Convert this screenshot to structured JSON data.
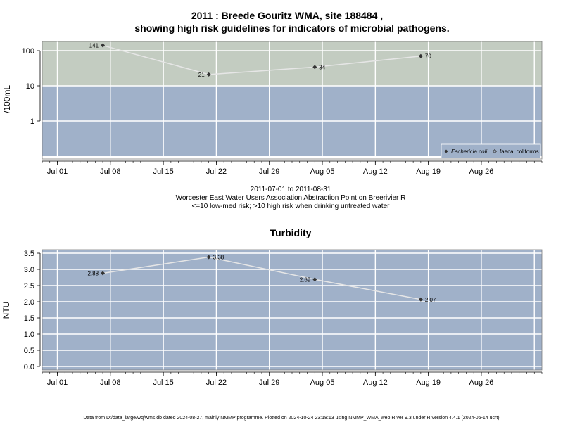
{
  "chart_data": [
    {
      "type": "line",
      "title_line1": "2011 : Breede Gouritz WMA, site 188484 ,",
      "title_line2": "showing high risk guidelines for indicators of microbial pathogens.",
      "ylabel": "/100mL",
      "yscale": "log",
      "yticks": [
        "1",
        "10",
        "100"
      ],
      "ytick_values": [
        1,
        10,
        100
      ],
      "xticks": [
        "Jul 01",
        "Jul 08",
        "Jul 15",
        "Jul 22",
        "Jul 29",
        "Aug 05",
        "Aug 12",
        "Aug 19",
        "Aug 26"
      ],
      "xtick_dates": [
        "2011-07-01",
        "2011-07-08",
        "2011-07-15",
        "2011-07-22",
        "2011-07-29",
        "2011-08-05",
        "2011-08-12",
        "2011-08-19",
        "2011-08-26"
      ],
      "xlim": [
        "2011-06-29",
        "2011-09-03"
      ],
      "grid": true,
      "background_bands": [
        {
          "label": "low-med risk",
          "range": [
            0.1,
            10
          ],
          "color": "#a0b1c9"
        },
        {
          "label": "high risk",
          "range": [
            10,
            200
          ],
          "color": "#c3ccc1"
        }
      ],
      "series": [
        {
          "name": "Eschericia coli",
          "marker": "filled-diamond",
          "x": [
            "2011-07-07",
            "2011-07-21",
            "2011-08-04",
            "2011-08-18"
          ],
          "values": [
            141,
            21,
            34,
            70
          ],
          "labels": [
            "141",
            "21",
            "34",
            "70"
          ]
        }
      ],
      "legend": {
        "placement": "bottom-right",
        "entries": [
          {
            "label": "Eschericia coli",
            "marker": "filled-diamond"
          },
          {
            "label": "faecal coliforms",
            "marker": "open-diamond"
          }
        ]
      },
      "caption_line1": "2011-07-01 to 2011-08-31",
      "caption_line2": "Worcester East Water Users Association Abstraction Point on Breerivier R",
      "caption_line3": "<=10 low-med risk; >10 high risk when drinking untreated water"
    },
    {
      "type": "line",
      "title": "Turbidity",
      "ylabel": "NTU",
      "ylim": [
        -0.1,
        3.5
      ],
      "yticks": [
        "0.0",
        "0.5",
        "1.0",
        "1.5",
        "2.0",
        "2.5",
        "3.0",
        "3.5"
      ],
      "ytick_values": [
        0,
        0.5,
        1,
        1.5,
        2,
        2.5,
        3,
        3.5
      ],
      "xticks": [
        "Jul 01",
        "Jul 08",
        "Jul 15",
        "Jul 22",
        "Jul 29",
        "Aug 05",
        "Aug 12",
        "Aug 19",
        "Aug 26"
      ],
      "xtick_dates": [
        "2011-07-01",
        "2011-07-08",
        "2011-07-15",
        "2011-07-22",
        "2011-07-29",
        "2011-08-05",
        "2011-08-12",
        "2011-08-19",
        "2011-08-26"
      ],
      "xlim": [
        "2011-06-29",
        "2011-09-03"
      ],
      "grid": true,
      "background_color": "#a0b1c9",
      "series": [
        {
          "marker": "filled-diamond",
          "x": [
            "2011-07-07",
            "2011-07-21",
            "2011-08-04",
            "2011-08-18"
          ],
          "values": [
            2.88,
            3.38,
            2.69,
            2.07
          ],
          "labels": [
            "2.88",
            "3.38",
            "2.69",
            "2.07"
          ]
        }
      ]
    }
  ],
  "footer": "Data from D:/data_large/wq/wms.db dated 2024-08-27, mainly NMMP programme. Plotted on 2024-10-24 23:18:13 using NMMP_WMA_web.R ver 9.3 under R version 4.4.1 (2024-06-14 ucrt)",
  "colors": {
    "band_low": "#a0b1c9",
    "band_high": "#c3ccc1",
    "grid": "#ffffff",
    "line": "#e6e6e6",
    "marker": "#333333",
    "frame": "#7f7f7f"
  }
}
